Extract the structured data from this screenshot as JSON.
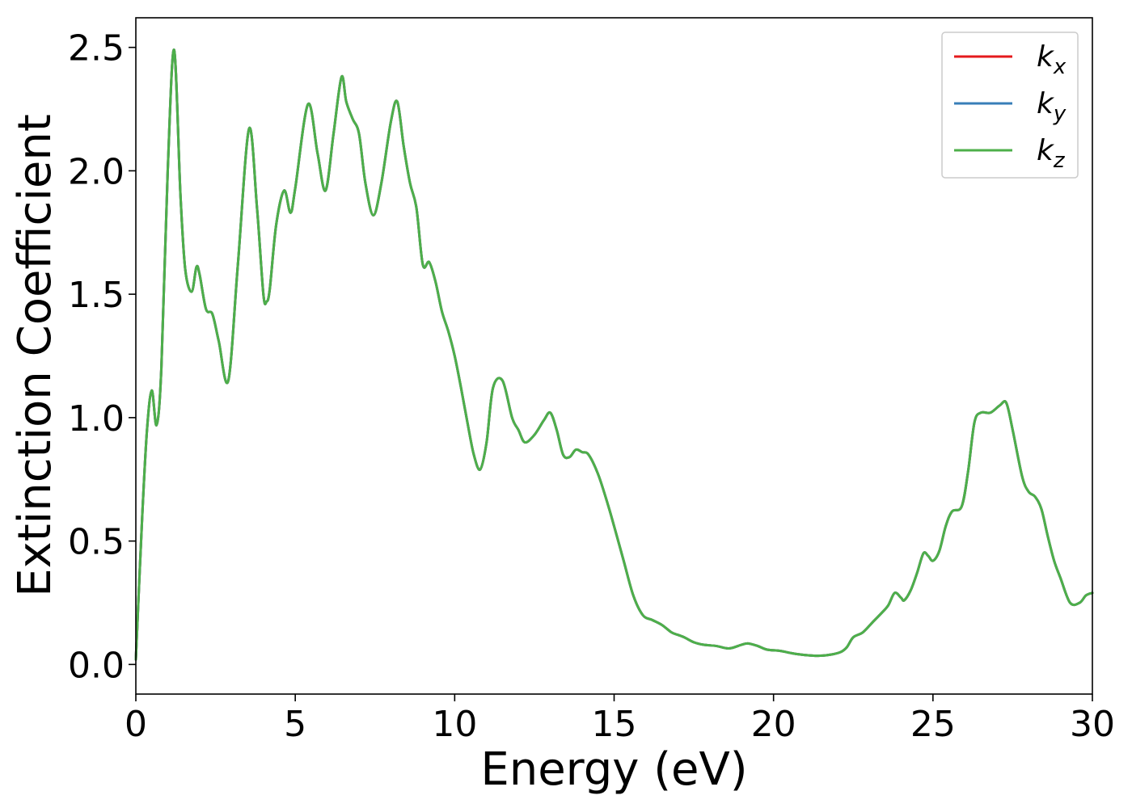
{
  "chart_data": {
    "type": "line",
    "title": "",
    "xlabel": "Energy (eV)",
    "ylabel": "Extinction Coefficient",
    "xlim": [
      0,
      30
    ],
    "ylim": [
      -0.12,
      2.62
    ],
    "xticks": [
      0,
      5,
      10,
      15,
      20,
      25,
      30
    ],
    "xtick_labels": [
      "0",
      "5",
      "10",
      "15",
      "20",
      "25",
      "30"
    ],
    "yticks": [
      0.0,
      0.5,
      1.0,
      1.5,
      2.0,
      2.5
    ],
    "ytick_labels": [
      "0.0",
      "0.5",
      "1.0",
      "1.5",
      "2.0",
      "2.5"
    ],
    "grid": false,
    "legend_position": "top-right",
    "x": [
      0.0,
      0.2,
      0.35,
      0.5,
      0.65,
      0.8,
      1.0,
      1.2,
      1.4,
      1.55,
      1.75,
      1.9,
      2.0,
      2.2,
      2.4,
      2.6,
      2.9,
      3.2,
      3.55,
      3.8,
      4.0,
      4.1,
      4.2,
      4.4,
      4.65,
      4.85,
      5.0,
      5.4,
      5.7,
      5.95,
      6.2,
      6.45,
      6.6,
      6.8,
      7.0,
      7.2,
      7.45,
      7.7,
      8.0,
      8.2,
      8.4,
      8.6,
      8.8,
      9.0,
      9.2,
      9.4,
      9.6,
      9.8,
      10.0,
      10.2,
      10.4,
      10.6,
      10.8,
      11.0,
      11.2,
      11.5,
      11.8,
      12.0,
      12.2,
      12.5,
      12.8,
      13.0,
      13.2,
      13.4,
      13.6,
      13.8,
      14.0,
      14.2,
      14.5,
      14.8,
      15.0,
      15.3,
      15.6,
      15.9,
      16.2,
      16.5,
      16.8,
      17.0,
      17.2,
      17.5,
      17.8,
      18.2,
      18.6,
      19.0,
      19.2,
      19.5,
      19.8,
      20.2,
      20.6,
      21.0,
      21.4,
      21.8,
      22.1,
      22.3,
      22.5,
      22.8,
      23.1,
      23.4,
      23.6,
      23.8,
      24.0,
      24.1,
      24.3,
      24.5,
      24.7,
      24.85,
      25.0,
      25.2,
      25.4,
      25.6,
      25.9,
      26.1,
      26.3,
      26.5,
      26.8,
      27.1,
      27.3,
      27.5,
      27.8,
      28.0,
      28.2,
      28.4,
      28.6,
      28.8,
      29.0,
      29.3,
      29.6,
      29.8,
      30.0
    ],
    "series": [
      {
        "name": "k_x",
        "display_base": "k",
        "display_sub": "x",
        "color": "#e41a1c",
        "values": "same_as_k_z"
      },
      {
        "name": "k_y",
        "display_base": "k",
        "display_sub": "y",
        "color": "#377eb8",
        "values": "same_as_k_z"
      },
      {
        "name": "k_z",
        "display_base": "k",
        "display_sub": "z",
        "color": "#4daf4a",
        "values": [
          0.02,
          0.6,
          0.95,
          1.11,
          0.97,
          1.2,
          2.0,
          2.49,
          1.9,
          1.6,
          1.51,
          1.61,
          1.58,
          1.44,
          1.42,
          1.31,
          1.15,
          1.62,
          2.17,
          1.85,
          1.5,
          1.47,
          1.52,
          1.78,
          1.92,
          1.83,
          1.93,
          2.27,
          2.07,
          1.92,
          2.15,
          2.38,
          2.28,
          2.21,
          2.15,
          1.95,
          1.82,
          1.95,
          2.2,
          2.28,
          2.1,
          1.95,
          1.85,
          1.62,
          1.63,
          1.55,
          1.43,
          1.35,
          1.25,
          1.12,
          0.98,
          0.85,
          0.79,
          0.9,
          1.12,
          1.15,
          1.0,
          0.95,
          0.9,
          0.93,
          0.99,
          1.02,
          0.95,
          0.85,
          0.84,
          0.87,
          0.86,
          0.85,
          0.77,
          0.65,
          0.56,
          0.42,
          0.28,
          0.2,
          0.18,
          0.16,
          0.13,
          0.12,
          0.11,
          0.09,
          0.08,
          0.075,
          0.065,
          0.08,
          0.085,
          0.075,
          0.06,
          0.055,
          0.045,
          0.038,
          0.035,
          0.04,
          0.05,
          0.07,
          0.11,
          0.13,
          0.17,
          0.21,
          0.24,
          0.29,
          0.27,
          0.26,
          0.3,
          0.37,
          0.45,
          0.44,
          0.42,
          0.46,
          0.56,
          0.62,
          0.64,
          0.78,
          0.98,
          1.02,
          1.02,
          1.05,
          1.06,
          0.95,
          0.76,
          0.7,
          0.68,
          0.63,
          0.52,
          0.42,
          0.35,
          0.25,
          0.25,
          0.28,
          0.29
        ]
      }
    ]
  }
}
